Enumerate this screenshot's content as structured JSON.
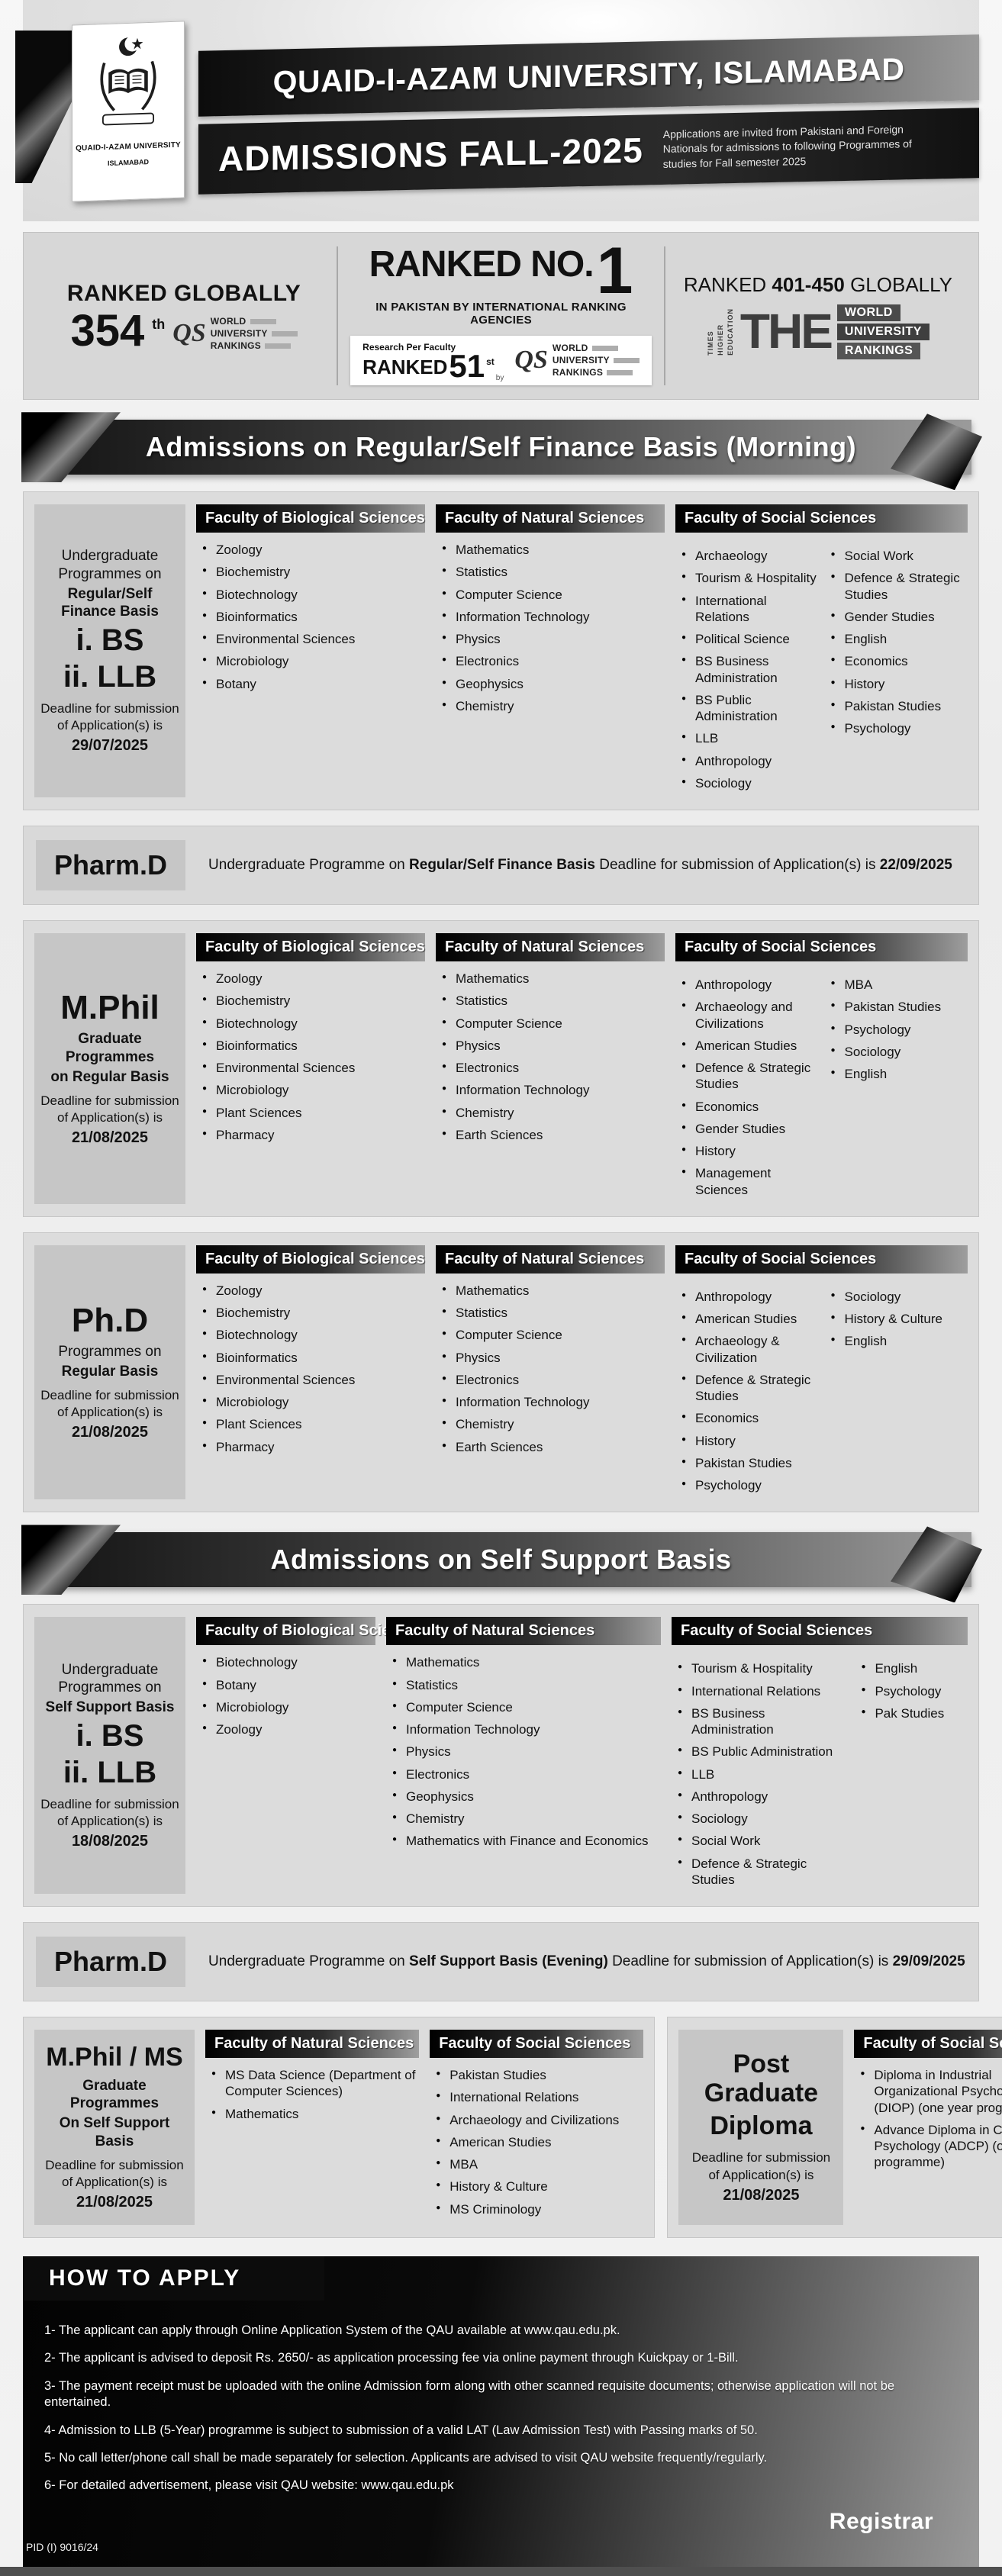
{
  "header": {
    "title": "QUAID-I-AZAM UNIVERSITY, ISLAMABAD",
    "subtitle": "ADMISSIONS FALL-2025",
    "note": "Applications are invited from Pakistani and Foreign Nationals for admissions to following Programmes of studies for Fall semester 2025",
    "logo_line1": "QUAID-I-AZAM UNIVERSITY",
    "logo_line2": "ISLAMABAD"
  },
  "rankings": {
    "left": {
      "title": "RANKED GLOBALLY",
      "rank": "354",
      "suffix": "th"
    },
    "center": {
      "ranked": "RANKED NO.",
      "one": "1",
      "sub": "IN PAKISTAN BY INTERNATIONAL RANKING AGENCIES",
      "research": "Research Per Faculty",
      "ranked2": "RANKED",
      "rank2": "51",
      "suffix2": "st",
      "by": "by"
    },
    "right": {
      "pre": "RANKED",
      "range": "401-450",
      "post": "GLOBALLY"
    }
  },
  "logos": {
    "qs": {
      "mark": "QS",
      "words": [
        "WORLD",
        "UNIVERSITY",
        "RANKINGS"
      ]
    },
    "the": {
      "mark": "THE",
      "vertical": [
        "TIMES",
        "HIGHER",
        "EDUCATION"
      ],
      "words": [
        "WORLD",
        "UNIVERSITY",
        "RANKINGS"
      ]
    }
  },
  "banners": {
    "regular": "Admissions on Regular/Self Finance Basis (Morning)",
    "self_support": "Admissions on Self Support Basis"
  },
  "faculty_titles": {
    "bio": "Faculty of Biological Sciences",
    "nat": "Faculty of Natural Sciences",
    "soc": "Faculty of Social Sciences"
  },
  "sections": {
    "ug_regular": {
      "info": {
        "top": "Undergraduate Programmes on",
        "bold": "Regular/Self Finance Basis",
        "roman1": "i. BS",
        "roman2": "ii. LLB",
        "deadline_label": "Deadline for submission of Application(s) is",
        "deadline": "29/07/2025"
      },
      "bio": [
        "Zoology",
        "Biochemistry",
        "Biotechnology",
        "Bioinformatics",
        "Environmental Sciences",
        "Microbiology",
        "Botany"
      ],
      "nat": [
        "Mathematics",
        "Statistics",
        "Computer Science",
        "Information Technology",
        "Physics",
        "Electronics",
        "Geophysics",
        "Chemistry"
      ],
      "soc1": [
        "Archaeology",
        "Tourism & Hospitality",
        "International Relations",
        "Political Science",
        "BS Business Administration",
        "BS Public Administration",
        "LLB",
        "Anthropology",
        "Sociology"
      ],
      "soc2": [
        "Social Work",
        "Defence & Strategic Studies",
        "Gender Studies",
        "English",
        "Economics",
        "History",
        "Pakistan Studies",
        "Psychology"
      ]
    },
    "pharmd_regular": {
      "label": "Pharm.D",
      "pre": "Undergraduate Programme on ",
      "bold": "Regular/Self Finance Basis",
      "mid": " Deadline for submission of Application(s) is ",
      "date": "22/09/2025"
    },
    "mphil": {
      "info": {
        "title": "M.Phil",
        "sub1": "Graduate Programmes",
        "sub2": "on Regular Basis",
        "deadline_label": "Deadline for submission of Application(s) is",
        "deadline": "21/08/2025"
      },
      "bio": [
        "Zoology",
        "Biochemistry",
        "Biotechnology",
        "Bioinformatics",
        "Environmental Sciences",
        "Microbiology",
        "Plant Sciences",
        "Pharmacy"
      ],
      "nat": [
        "Mathematics",
        "Statistics",
        "Computer Science",
        "Physics",
        "Electronics",
        "Information Technology",
        "Chemistry",
        "Earth Sciences"
      ],
      "soc1": [
        "Anthropology",
        "Archaeology and Civilizations",
        "American Studies",
        "Defence & Strategic Studies",
        "Economics",
        "Gender Studies",
        "History",
        "Management Sciences"
      ],
      "soc2": [
        "MBA",
        "Pakistan Studies",
        "Psychology",
        "Sociology",
        "English"
      ]
    },
    "phd": {
      "info": {
        "title": "Ph.D",
        "sub1": "Programmes on",
        "sub2": "Regular Basis",
        "deadline_label": "Deadline for submission of Application(s) is",
        "deadline": "21/08/2025"
      },
      "bio": [
        "Zoology",
        "Biochemistry",
        "Biotechnology",
        "Bioinformatics",
        "Environmental Sciences",
        "Microbiology",
        "Plant Sciences",
        "Pharmacy"
      ],
      "nat": [
        "Mathematics",
        "Statistics",
        "Computer Science",
        "Physics",
        "Electronics",
        "Information Technology",
        "Chemistry",
        "Earth Sciences"
      ],
      "soc1": [
        "Anthropology",
        "American Studies",
        "Archaeology & Civilization",
        "Defence & Strategic Studies",
        "Economics",
        "History",
        "Pakistan Studies",
        "Psychology"
      ],
      "soc2": [
        "Sociology",
        "History & Culture",
        "English"
      ]
    },
    "ug_self": {
      "info": {
        "top": "Undergraduate Programmes on",
        "bold": "Self Support Basis",
        "roman1": "i. BS",
        "roman2": "ii. LLB",
        "deadline_label": "Deadline for submission of Application(s) is",
        "deadline": "18/08/2025"
      },
      "bio": [
        "Biotechnology",
        "Botany",
        "Microbiology",
        "Zoology"
      ],
      "nat": [
        "Mathematics",
        "Statistics",
        "Computer Science",
        "Information Technology",
        "Physics",
        "Electronics",
        "Geophysics",
        "Chemistry",
        "Mathematics with Finance and Economics"
      ],
      "soc1": [
        "Tourism & Hospitality",
        "International Relations",
        "BS Business Administration",
        "BS Public Administration",
        "LLB",
        "Anthropology",
        "Sociology",
        "Social Work",
        "Defence & Strategic Studies"
      ],
      "soc2": [
        "English",
        "Psychology",
        "Pak Studies"
      ]
    },
    "pharmd_self": {
      "label": "Pharm.D",
      "pre": "Undergraduate Programme on ",
      "bold": "Self Support Basis (Evening)",
      "mid": " Deadline for submission of Application(s) is ",
      "date": "29/09/2025"
    },
    "mphil_ms": {
      "info": {
        "title": "M.Phil / MS",
        "sub1": "Graduate Programmes",
        "sub2": "On Self Support Basis",
        "deadline_label": "Deadline for submission of Application(s) is",
        "deadline": "21/08/2025"
      },
      "nat": [
        "MS Data Science (Department of Computer Sciences)",
        "Mathematics"
      ],
      "soc": [
        "Pakistan Studies",
        "International Relations",
        "Archaeology and Civilizations",
        "American Studies",
        "MBA",
        "History & Culture",
        "MS Criminology"
      ]
    },
    "pgd": {
      "info": {
        "title1": "Post Graduate",
        "title2": "Diploma",
        "deadline_label": "Deadline for submission of Application(s) is",
        "deadline": "21/08/2025"
      },
      "soc": [
        "Diploma in Industrial Organizational Psychology (DIOP) (one year programme)",
        "Advance Diploma in Clinical Psychology (ADCP) (one year programme)"
      ]
    }
  },
  "how_to_apply": {
    "title": "HOW TO APPLY",
    "items": [
      "1- The applicant can apply through Online Application System of the QAU available at www.qau.edu.pk.",
      "2- The applicant is advised to deposit Rs. 2650/- as application processing fee via online payment through Kuickpay or 1-Bill.",
      "3- The payment receipt must be uploaded with the online Admission form along with other scanned requisite documents; otherwise application will not be entertained.",
      "4- Admission to LLB (5-Year) programme is subject to submission of a valid LAT (Law Admission Test) with Passing marks of 50.",
      "5- No call letter/phone call shall be made separately for selection. Applicants are advised to visit QAU website frequently/regularly.",
      "6- For detailed advertisement, please visit QAU website: www.qau.edu.pk"
    ]
  },
  "footer": {
    "registrar": "Registrar",
    "pid": "PID (I) 9016/24"
  }
}
